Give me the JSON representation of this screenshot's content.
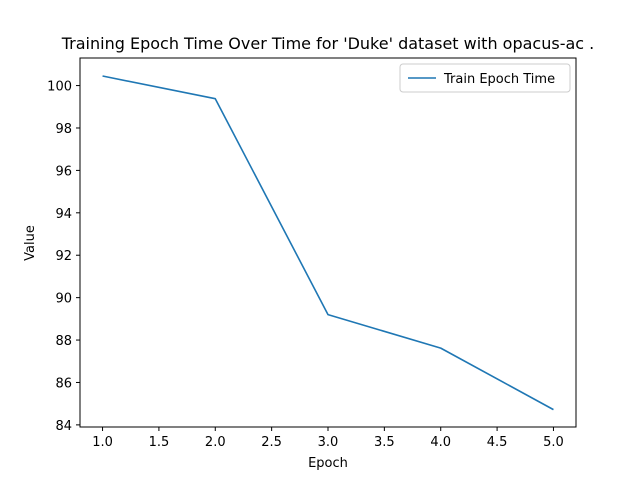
{
  "chart_data": {
    "type": "line",
    "title": "Training Epoch Time Over Time for 'Duke' dataset with opacus-ac .",
    "xlabel": "Epoch",
    "ylabel": "Value",
    "xlim": [
      0.8,
      5.2
    ],
    "ylim": [
      83.9,
      101.3
    ],
    "xticks": [
      "1.0",
      "1.5",
      "2.0",
      "2.5",
      "3.0",
      "3.5",
      "4.0",
      "4.5",
      "5.0"
    ],
    "yticks": [
      "84",
      "86",
      "88",
      "90",
      "92",
      "94",
      "96",
      "98",
      "100"
    ],
    "grid": false,
    "legend_position": "top-right",
    "series": [
      {
        "name": "Train Epoch Time",
        "color": "#1f77b4",
        "x": [
          1,
          2,
          3,
          4,
          5
        ],
        "y": [
          100.45,
          99.38,
          89.2,
          87.62,
          84.72
        ]
      }
    ]
  }
}
